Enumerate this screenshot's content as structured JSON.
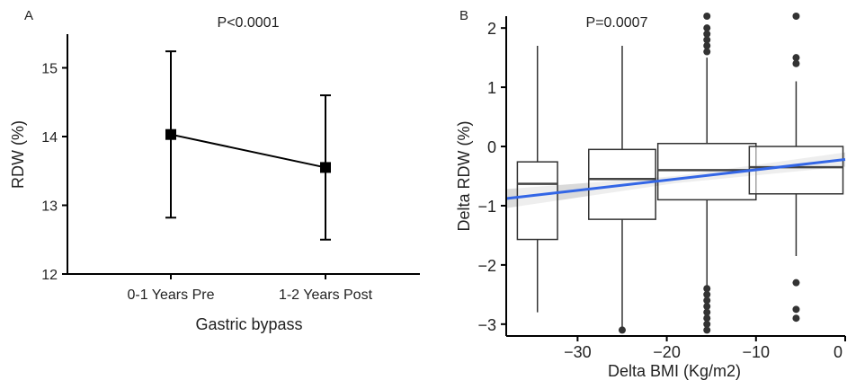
{
  "chart_data": [
    {
      "panel_label": "A",
      "type": "line",
      "annotation": "P<0.0001",
      "xlabel": "Gastric bypass",
      "ylabel": "RDW (%)",
      "categories": [
        "0-1 Years Pre",
        "1-2 Years Post"
      ],
      "ylim": [
        12,
        15.5
      ],
      "yticks": [
        12,
        13,
        14,
        15
      ],
      "series": [
        {
          "values": [
            14.03,
            13.55
          ],
          "error_low": [
            12.82,
            12.5
          ],
          "error_high": [
            15.24,
            14.6
          ]
        }
      ],
      "grid": false,
      "color": "#000000"
    },
    {
      "panel_label": "B",
      "type": "box",
      "annotation": "P=0.0007",
      "xlabel": "Delta BMI (Kg/m2)",
      "ylabel": "Delta RDW (%)",
      "xlim": [
        -38,
        0
      ],
      "ylim": [
        -3.2,
        2.2
      ],
      "xticks": [
        -30,
        -20,
        -10,
        0
      ],
      "yticks": [
        -3,
        -2,
        -1,
        0,
        1,
        2
      ],
      "grid": false,
      "boxes": [
        {
          "center": -34.5,
          "width": 4.5,
          "whisker_low": -2.8,
          "q1": -1.57,
          "median": -0.63,
          "q3": -0.26,
          "whisker_high": 1.7,
          "outliers": []
        },
        {
          "center": -25,
          "width": 7.5,
          "whisker_low": -3.05,
          "q1": -1.23,
          "median": -0.55,
          "q3": -0.05,
          "whisker_high": 1.7,
          "outliers": [
            -3.1
          ]
        },
        {
          "center": -15.5,
          "width": 11,
          "whisker_low": -2.35,
          "q1": -0.9,
          "median": -0.4,
          "q3": 0.05,
          "whisker_high": 1.5,
          "outliers": [
            2.2,
            2.0,
            1.9,
            1.8,
            1.7,
            1.6,
            -2.4,
            -2.5,
            -2.6,
            -2.7,
            -2.8,
            -2.9,
            -3.0,
            -3.1
          ]
        },
        {
          "center": -5.5,
          "width": 10.5,
          "whisker_low": -1.85,
          "q1": -0.8,
          "median": -0.35,
          "q3": 0.0,
          "whisker_high": 1.1,
          "outliers": [
            2.2,
            1.5,
            1.4,
            -2.3,
            -2.75,
            -2.9
          ]
        }
      ],
      "trend_line": {
        "x": [
          -38,
          0
        ],
        "y": [
          -0.88,
          -0.22
        ],
        "color": "#3366e6"
      },
      "confidence_band": {
        "x": [
          -38,
          -19,
          0
        ],
        "upper": [
          -0.72,
          -0.5,
          -0.1
        ],
        "lower": [
          -1.04,
          -0.62,
          -0.34
        ],
        "color": "#d3d3d3"
      }
    }
  ]
}
